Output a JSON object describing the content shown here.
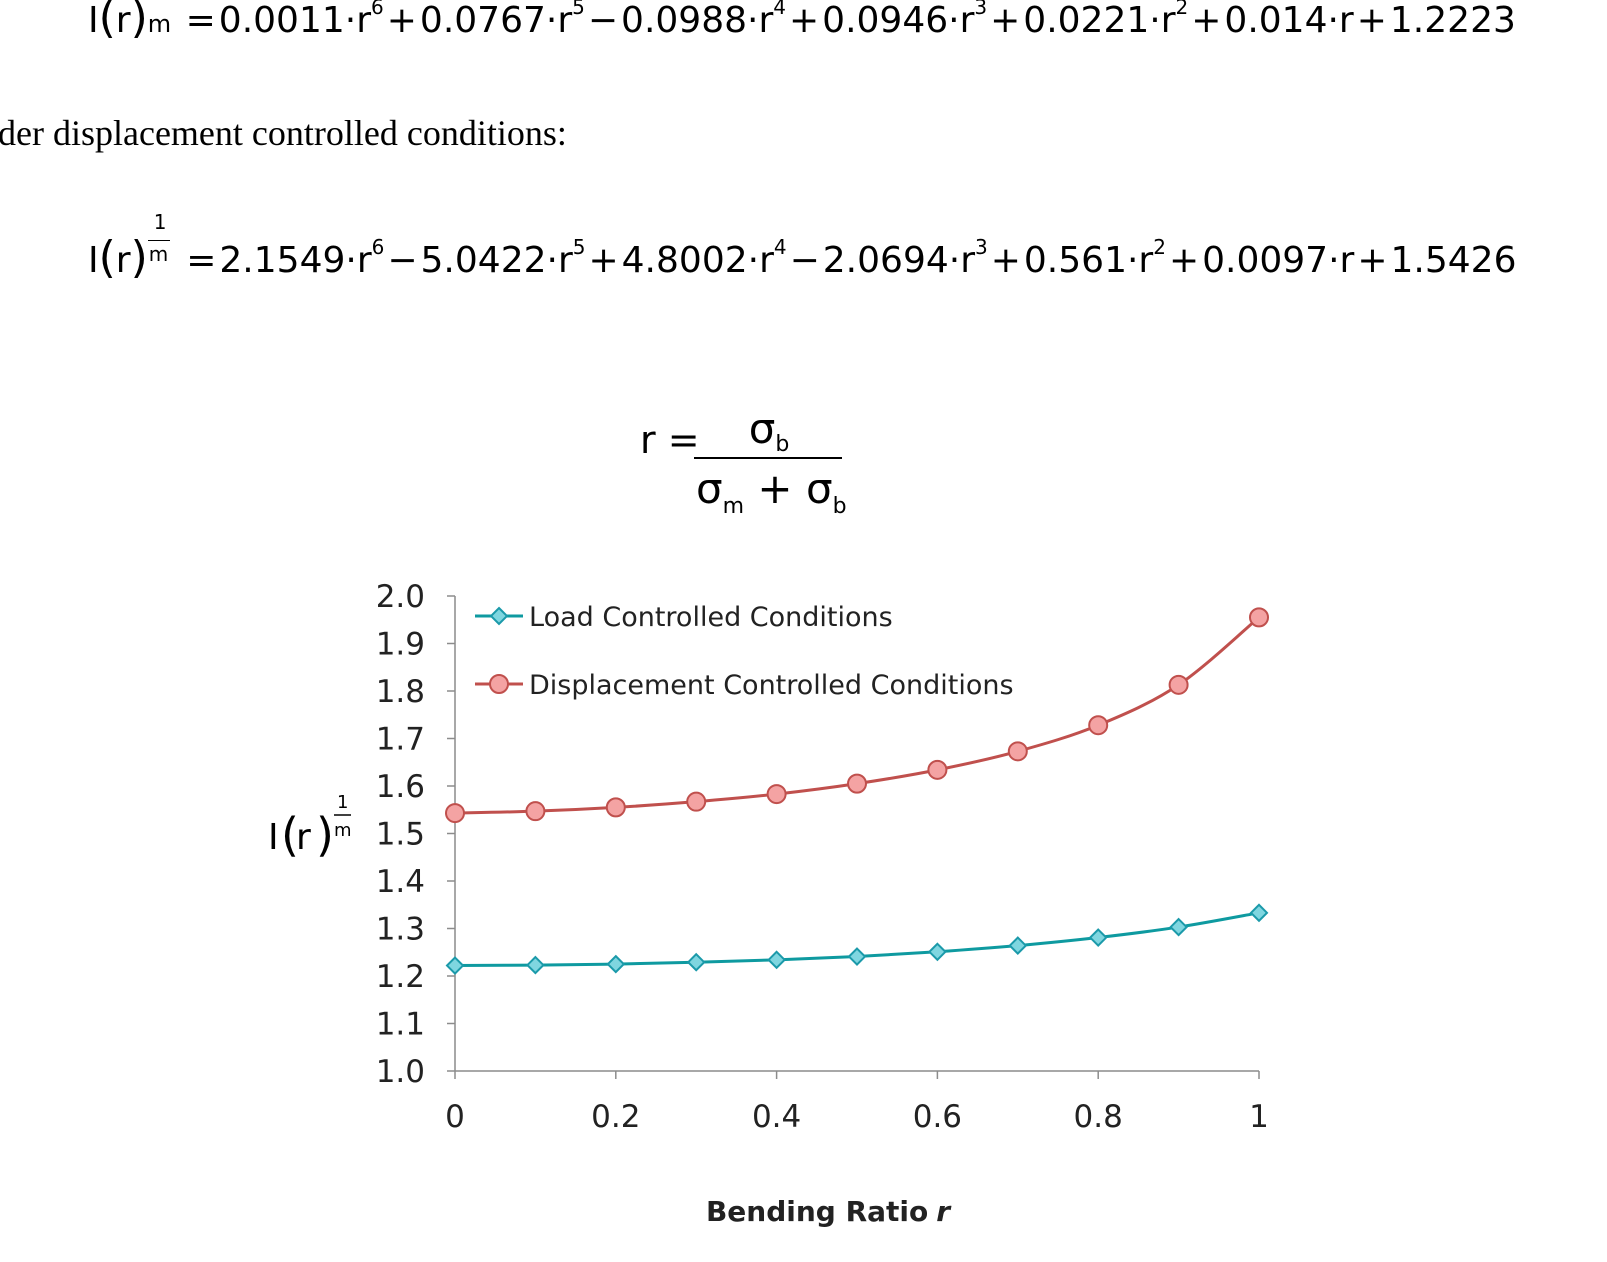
{
  "equations": {
    "load": {
      "lhs_func": "I",
      "lhs_arg": "r",
      "lhs_exp_var": "m",
      "rhs": [
        {
          "sign": "=",
          "coef": "0.0011",
          "power": "6"
        },
        {
          "sign": "+",
          "coef": "0.0767",
          "power": "5"
        },
        {
          "sign": "−",
          "coef": "0.0988",
          "power": "4"
        },
        {
          "sign": "+",
          "coef": "0.0946",
          "power": "3"
        },
        {
          "sign": "+",
          "coef": "0.0221",
          "power": "2"
        },
        {
          "sign": "+",
          "coef": "0.014",
          "power": ""
        },
        {
          "sign": "+",
          "coef": "1.2223",
          "power": null
        }
      ]
    },
    "intro_text": "der displacement controlled conditions:",
    "displacement": {
      "lhs_func": "I",
      "lhs_arg": "r",
      "lhs_exp_num": "1",
      "lhs_exp_den": "m",
      "rhs": [
        {
          "sign": "=",
          "coef": "2.1549",
          "power": "6"
        },
        {
          "sign": "−",
          "coef": "5.0422",
          "power": "5"
        },
        {
          "sign": "+",
          "coef": "4.8002",
          "power": "4"
        },
        {
          "sign": "−",
          "coef": "2.0694",
          "power": "3"
        },
        {
          "sign": "+",
          "coef": "0.561",
          "power": "2"
        },
        {
          "sign": "+",
          "coef": "0.0097",
          "power": ""
        },
        {
          "sign": "+",
          "coef": "1.5426",
          "power": null
        }
      ]
    },
    "ratio_def": {
      "lhs": "r",
      "eq": "=",
      "numerator": "σ",
      "numerator_sub": "b",
      "denominator_a": "σ",
      "denominator_a_sub": "m",
      "plus": "+",
      "denominator_b": "σ",
      "denominator_b_sub": "b"
    }
  },
  "chart_data": {
    "type": "line",
    "x": [
      0,
      0.1,
      0.2,
      0.3,
      0.4,
      0.5,
      0.6,
      0.7,
      0.8,
      0.9,
      1
    ],
    "x_ticks": [
      "0",
      "0.2",
      "0.4",
      "0.6",
      "0.8",
      "1"
    ],
    "x_tick_values": [
      0,
      0.2,
      0.4,
      0.6,
      0.8,
      1
    ],
    "y_ticks": [
      "1.0",
      "1.1",
      "1.2",
      "1.3",
      "1.4",
      "1.5",
      "1.6",
      "1.7",
      "1.8",
      "1.9",
      "2.0"
    ],
    "y_tick_values": [
      1.0,
      1.1,
      1.2,
      1.3,
      1.4,
      1.5,
      1.6,
      1.7,
      1.8,
      1.9,
      2.0
    ],
    "xlim": [
      0,
      1
    ],
    "ylim": [
      1.0,
      2.0
    ],
    "xlabel": "Bending Ratio",
    "xlabel_var": "r",
    "ylabel_func": "I",
    "ylabel_arg": "r",
    "ylabel_exp_num": "1",
    "ylabel_exp_den": "m",
    "grid": false,
    "legend_position": "top-left",
    "series": [
      {
        "name": "Load Controlled Conditions",
        "marker": "diamond",
        "line_color": "#0e9aa0",
        "marker_fill": "#7fd6e0",
        "marker_stroke": "#1b9aaa",
        "values": [
          1.222,
          1.223,
          1.225,
          1.229,
          1.234,
          1.241,
          1.251,
          1.264,
          1.281,
          1.303,
          1.333
        ]
      },
      {
        "name": "Displacement Controlled Conditions",
        "marker": "circle",
        "line_color": "#c0504d",
        "marker_fill": "#f4a3a3",
        "marker_stroke": "#c0504d",
        "values": [
          1.543,
          1.547,
          1.555,
          1.567,
          1.583,
          1.605,
          1.634,
          1.673,
          1.728,
          1.813,
          1.955
        ]
      }
    ]
  }
}
